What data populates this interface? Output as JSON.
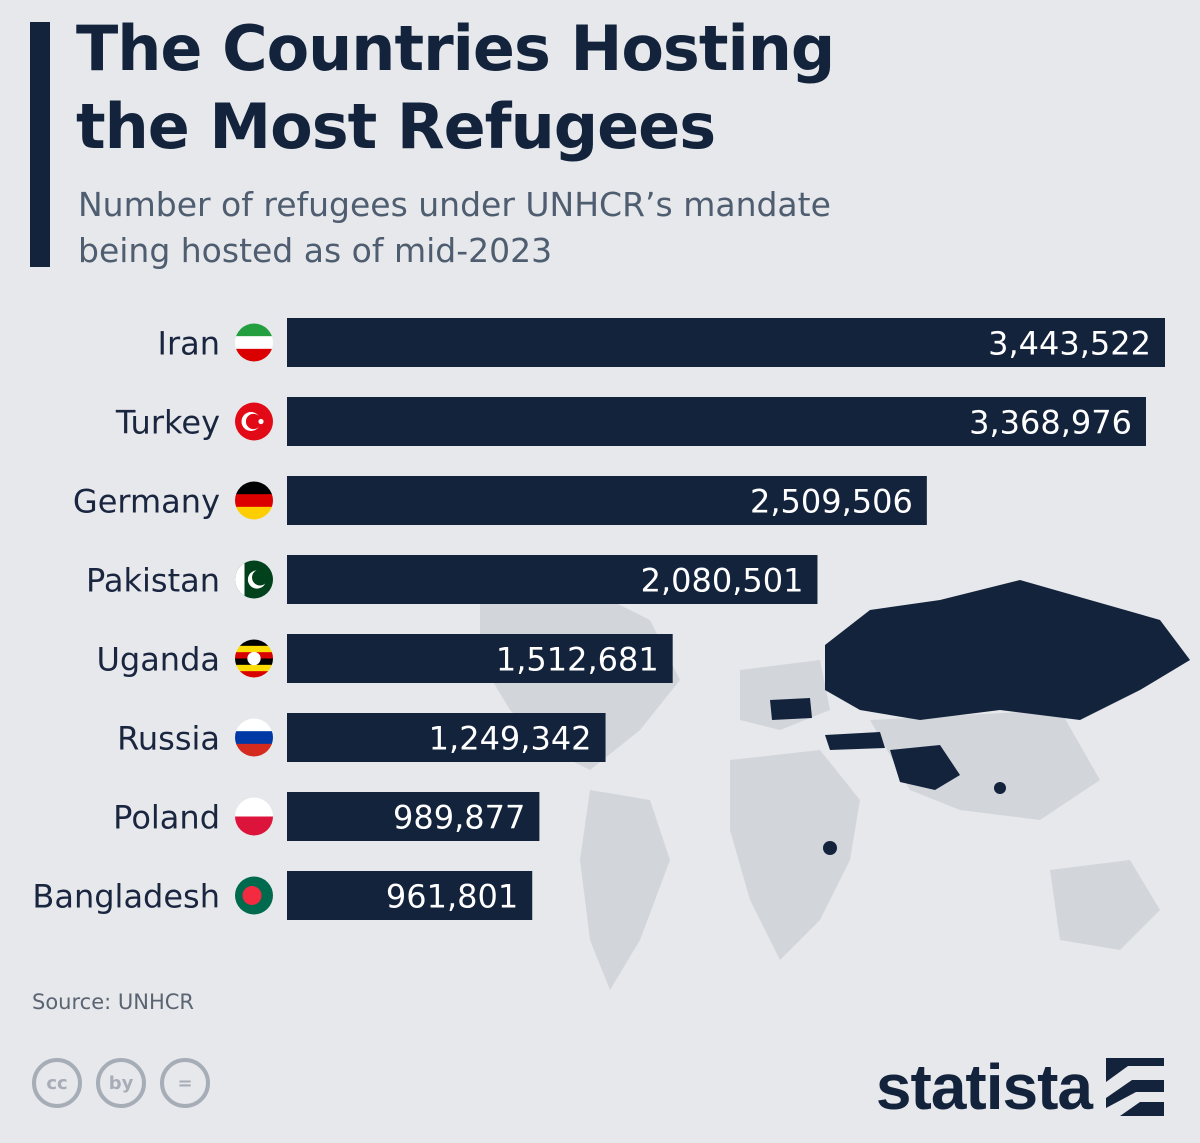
{
  "title_line1": "The Countries Hosting",
  "title_line2": "the Most Refugees",
  "subtitle_line1": "Number of refugees under UNHCR’s mandate",
  "subtitle_line2": "being hosted as of mid-2023",
  "source": "Source: UNHCR",
  "brand": "statista",
  "cc_icons": [
    "cc",
    "by",
    "="
  ],
  "colors": {
    "bar": "#13233c",
    "background": "#e6e8eb",
    "map": "#d2d5da",
    "highlight": "#13233c"
  },
  "chart_data": {
    "type": "bar",
    "orientation": "horizontal",
    "title": "The Countries Hosting the Most Refugees",
    "subtitle": "Number of refugees under UNHCR’s mandate being hosted as of mid-2023",
    "categories": [
      "Iran",
      "Turkey",
      "Germany",
      "Pakistan",
      "Uganda",
      "Russia",
      "Poland",
      "Bangladesh"
    ],
    "values": [
      3443522,
      3368976,
      2509506,
      2080501,
      1512681,
      1249342,
      989877,
      961801
    ],
    "labels": [
      "3,443,522",
      "3,368,976",
      "2,509,506",
      "2,080,501",
      "1,512,681",
      "1,249,342",
      "989,877",
      "961,801"
    ],
    "flags": [
      "iran-flag",
      "turkey-flag",
      "germany-flag",
      "pakistan-flag",
      "uganda-flag",
      "russia-flag",
      "poland-flag",
      "bangladesh-flag"
    ],
    "xlim": [
      0,
      3443522
    ],
    "xlabel": "",
    "ylabel": ""
  }
}
